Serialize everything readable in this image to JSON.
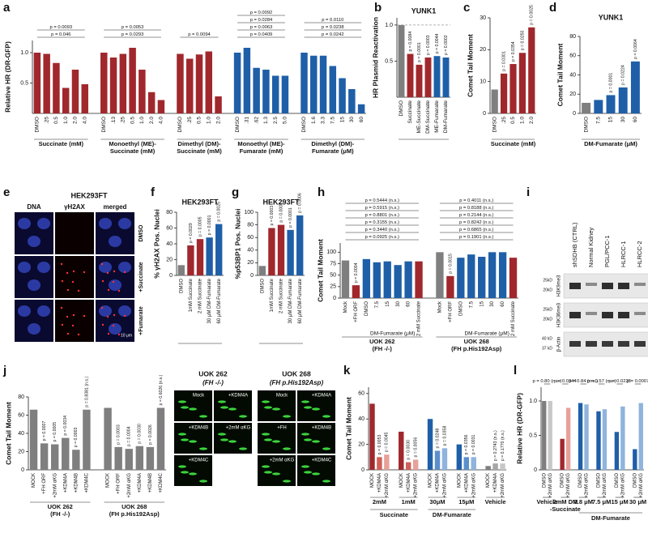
{
  "chart_data": [
    {
      "type": "bar",
      "panel": "a",
      "ylabel": "Relative HR (DR-GFP)",
      "ylim": [
        0,
        1.2
      ],
      "yticks": [
        0.5,
        {
          "value": 1,
          "label": "1.0"
        }
      ],
      "groups": [
        {
          "label": [
            "Succinate (mM)"
          ],
          "categories": [
            "DMSO",
            ".25",
            "0.5",
            "1.0",
            "2.0",
            "4.0"
          ],
          "values": [
            1.0,
            0.98,
            0.83,
            0.42,
            0.72,
            0.48
          ],
          "color": "#a0282d",
          "comparisons": [
            "p = 0.046",
            "p = 0.0093"
          ]
        },
        {
          "label": [
            "Monoethyl (ME)-",
            "Succinate (mM)"
          ],
          "categories": [
            "DMSO",
            ".13",
            ".25",
            "0.5",
            "1.0",
            "2.0",
            "4.0"
          ],
          "values": [
            1.0,
            0.92,
            0.98,
            1.08,
            0.72,
            0.35,
            0.22
          ],
          "color": "#a0282d",
          "comparisons": [
            "p = 0.0293",
            "p = 0.0053"
          ]
        },
        {
          "label": [
            "Dimethyl (DM)-",
            "Succinate (mM)"
          ],
          "categories": [
            "DMSO",
            ".25",
            "0.5",
            "1.0",
            "2.0"
          ],
          "values": [
            0.98,
            0.9,
            0.97,
            1.02,
            0.28
          ],
          "color": "#a0282d",
          "comparisons": [
            "p = 0.0094"
          ]
        },
        {
          "label": [
            "Monoethyl (ME)-",
            "Fumarate (mM)"
          ],
          "categories": [
            "DMSO",
            ".31",
            ".62",
            "1.3",
            "2.5",
            "5.0"
          ],
          "values": [
            1.0,
            1.08,
            0.75,
            0.72,
            0.62,
            0.62
          ],
          "color": "#1f5fa8",
          "comparisons": [
            "p = 0.0409",
            "p = 0.0063",
            "p = 0.0284",
            "p = 0.0092"
          ]
        },
        {
          "label": [
            "Dimethyl (DM)-",
            "Fumarate (μM)"
          ],
          "categories": [
            "DMSO",
            "1.6",
            "3.3",
            "7.5",
            "15",
            "30",
            "60"
          ],
          "values": [
            1.0,
            0.95,
            0.95,
            0.78,
            0.58,
            0.4,
            0.15
          ],
          "color": "#1f5fa8",
          "comparisons": [
            "p = 0.0242",
            "p = 0.0238",
            "p = 0.0110"
          ]
        }
      ]
    },
    {
      "type": "bar",
      "panel": "b",
      "title": "YUNK1",
      "ylabel": "HR Plasmid Reactivation",
      "ylim": [
        0,
        1.1
      ],
      "yticks": [
        0.5,
        {
          "value": 1,
          "label": "1.0"
        }
      ],
      "reference": 1,
      "groups": [
        {
          "categories": [
            "DMSO",
            "Succinate",
            "ME-Succinate",
            "DM-Succinate",
            "ME-Fumarate",
            "DM-Fumarate"
          ],
          "values": [
            1.0,
            0.6,
            0.45,
            0.55,
            0.57,
            0.55
          ],
          "colors": [
            "#7f7f7f",
            "#a0282d",
            "#a0282d",
            "#a0282d",
            "#1f5fa8",
            "#1f5fa8"
          ],
          "value_labels": [
            null,
            "p = 0.0084",
            "p = 0.0001",
            "p = 0.0003",
            "p = 0.0044",
            "p = 0.0002"
          ]
        }
      ]
    },
    {
      "type": "bar",
      "panel": "c",
      "ylabel": "Comet Tail Moment",
      "ylim": [
        0,
        30
      ],
      "yticks": [
        0,
        10,
        20,
        30
      ],
      "groups": [
        {
          "label": [
            "Succinate (mM)"
          ],
          "categories": [
            "DMSO",
            ".25",
            "0.5",
            "1.0",
            "2.0"
          ],
          "values": [
            7.5,
            12.5,
            15.5,
            19,
            27
          ],
          "colors": [
            "#7f7f7f",
            "#a0282d",
            "#a0282d",
            "#a0282d",
            "#a0282d"
          ],
          "value_labels": [
            null,
            "p = 0.0301",
            "p = 0.0354",
            "p = 0.0250",
            "p = 0.0025"
          ]
        }
      ]
    },
    {
      "type": "bar",
      "panel": "d",
      "title": "YUNK1",
      "ylabel": "Comet Tail Moment",
      "ylim": [
        0,
        80
      ],
      "yticks": [
        0,
        20,
        40,
        60,
        80
      ],
      "groups": [
        {
          "label": [
            "DM-Fumarate (μM)"
          ],
          "categories": [
            "DMSO",
            "7.5",
            "15",
            "30",
            "60"
          ],
          "values": [
            11,
            14,
            19,
            27,
            54
          ],
          "colors": [
            "#7f7f7f",
            "#1f5fa8",
            "#1f5fa8",
            "#1f5fa8",
            "#1f5fa8"
          ],
          "value_labels": [
            null,
            null,
            "p = 0.0001",
            "p = 0.0224",
            "p = 0.0064"
          ]
        }
      ]
    },
    {
      "type": "bar",
      "panel": "f",
      "title": "HEK293FT",
      "ylabel": "% γH2AX Pos. Nuclei",
      "ylim": [
        0,
        80
      ],
      "yticks": [
        0,
        20,
        40,
        60,
        80
      ],
      "groups": [
        {
          "categories": [
            "DMSO",
            "1mM Succinate",
            "2 mM Succinate",
            "30 µM DM-Fumarate",
            "60 µM DM-Fumarate"
          ],
          "values": [
            13,
            38,
            46,
            48,
            65
          ],
          "colors": [
            "#7f7f7f",
            "#a0282d",
            "#a0282d",
            "#1f5fa8",
            "#1f5fa8"
          ],
          "value_labels": [
            null,
            "p = 0.0029",
            "p = 0.0005",
            "p = 0.0001",
            "p = 0.0025"
          ]
        }
      ]
    },
    {
      "type": "bar",
      "panel": "g",
      "title": "HEK293FT",
      "ylabel": "%p53BP1 Pos. Nuclei",
      "ylim": [
        0,
        100
      ],
      "yticks": [
        0,
        20,
        40,
        60,
        80,
        100
      ],
      "groups": [
        {
          "categories": [
            "DMSO",
            "1mM Succinate",
            "2 mM Succinate",
            "30 µM DM-Fumarate",
            "60 µM DM-Fumarate"
          ],
          "values": [
            15,
            75,
            80,
            72,
            95
          ],
          "colors": [
            "#7f7f7f",
            "#a0282d",
            "#a0282d",
            "#1f5fa8",
            "#1f5fa8"
          ],
          "value_labels": [
            null,
            "p = 0.0003",
            "p = 0.0001",
            "p = 0.0001",
            "p = 0.0006"
          ]
        }
      ]
    },
    {
      "type": "bar",
      "panel": "h",
      "ylabel": "Comet Tail Moment",
      "ylim": [
        0,
        120
      ],
      "yticks": [
        0,
        25,
        50,
        75,
        100
      ],
      "groups": [
        {
          "label": [
            "UOK 262",
            "(FH -/-)"
          ],
          "note": "DM-Fumarate (μM)",
          "categories": [
            "Mock",
            "+FH ORF",
            "DMSO",
            "7.5",
            "15",
            "30",
            "60",
            "2 mM Succinate"
          ],
          "values": [
            82,
            28,
            85,
            78,
            80,
            72,
            80,
            80
          ],
          "colors": [
            "#7f7f7f",
            "#a0282d",
            "#1f5fa8",
            "#1f5fa8",
            "#1f5fa8",
            "#1f5fa8",
            "#1f5fa8",
            "#a0282d"
          ],
          "value_labels": [
            null,
            "p = 0.0004",
            null,
            null,
            null,
            null,
            null,
            null
          ],
          "comparisons": [
            "p = 0.0925 (n.s.)",
            "p = 0.3440 (n.s.)",
            "p = 0.3155 (n.s.)",
            "p = 0.8801 (n.s.)",
            "p = 0.5915 (n.s.)",
            "p = 0.5444 (n.s.)"
          ]
        },
        {
          "label": [
            "UOK 268",
            "(FH p.His192Asp)"
          ],
          "note": "DM-Fumarate (μM)",
          "categories": [
            "Mock",
            "+FH ORF",
            "DMSO",
            "7.5",
            "15",
            "30",
            "60",
            "2 mM Succinate"
          ],
          "values": [
            100,
            48,
            88,
            95,
            90,
            100,
            100,
            88
          ],
          "colors": [
            "#7f7f7f",
            "#a0282d",
            "#1f5fa8",
            "#1f5fa8",
            "#1f5fa8",
            "#1f5fa8",
            "#1f5fa8",
            "#a0282d"
          ],
          "value_labels": [
            null,
            "p = 0.0015",
            null,
            null,
            null,
            null,
            null,
            null
          ],
          "comparisons": [
            "p = 0.1901 (n.s.)",
            "p = 0.6865 (n.s.)",
            "p = 0.8242 (n.s.)",
            "p = 0.2144 (n.s.)",
            "p = 0.8188 (n.s.)",
            "p = 0.4011 (n.s.)"
          ]
        }
      ]
    },
    {
      "type": "bar",
      "panel": "j",
      "ylabel": "Comet Tail Moment",
      "ylim": [
        0,
        80
      ],
      "yticks": [
        0,
        20,
        40,
        60,
        80
      ],
      "groups": [
        {
          "label": [
            "UOK 262",
            "(FH -/-)"
          ],
          "categories": [
            "MOCK",
            "+FH ORF",
            "+2mM αKG",
            "+KDM4A",
            "+KDM4B",
            "+KDM4C"
          ],
          "values": [
            66,
            29,
            28,
            35,
            22,
            66
          ],
          "colors": [
            "#7f7f7f",
            "#7f7f7f",
            "#7f7f7f",
            "#7f7f7f",
            "#7f7f7f",
            "#7f7f7f"
          ],
          "value_labels": [
            null,
            "p = 0.0007",
            "p = 0.0005",
            "p = 0.0034",
            "p = 0.0003",
            "p = 0.8381 (n.s.)"
          ]
        },
        {
          "label": [
            "UOK 268",
            "(FH p.His192Asp)"
          ],
          "categories": [
            "MOCK",
            "+FH ORF",
            "+2mM αKG",
            "+KDM4A",
            "+KDM4B",
            "+KDM4C"
          ],
          "values": [
            68,
            25,
            23,
            26,
            25,
            68
          ],
          "colors": [
            "#7f7f7f",
            "#7f7f7f",
            "#7f7f7f",
            "#7f7f7f",
            "#7f7f7f",
            "#7f7f7f"
          ],
          "value_labels": [
            null,
            "p = 0.0003",
            "p = 0.0004",
            "p = 0.0030",
            "p = 0.0026",
            "p = 0.6026 (n.s.)"
          ]
        }
      ]
    },
    {
      "type": "bar",
      "panel": "k",
      "ylabel": "Comet Tail Moment",
      "ylim": [
        0,
        65
      ],
      "yticks": [
        0,
        20,
        40,
        60
      ],
      "groups": [
        {
          "label": [
            "2mM"
          ],
          "parent": "Succinate",
          "categories": [
            "MOCK",
            "+KDM4A",
            "+2mM αKG"
          ],
          "values": [
            52,
            10,
            12
          ],
          "colors": [
            "#a0282d",
            "#d0605a",
            "#e8a09a"
          ],
          "value_labels": [
            null,
            "p = 0.0053",
            "p = 0.0045"
          ]
        },
        {
          "label": [
            "1mM"
          ],
          "parent": "Succinate",
          "categories": [
            "MOCK",
            "+KDM4A",
            "+2mM αKG"
          ],
          "values": [
            30,
            6,
            8
          ],
          "colors": [
            "#a0282d",
            "#d0605a",
            "#e8a09a"
          ],
          "value_labels": [
            null,
            "p = 0.0030",
            "p = 0.0056"
          ]
        },
        {
          "label": [
            "30μM"
          ],
          "parent": "DM-Fumarate",
          "categories": [
            "MOCK",
            "+KDM4A",
            "+2mM αKG"
          ],
          "values": [
            40,
            15,
            17
          ],
          "colors": [
            "#1f5fa8",
            "#5b8fcc",
            "#8fb4dd"
          ],
          "value_labels": [
            null,
            "p = 0.0248",
            "p = 0.0358"
          ]
        },
        {
          "label": [
            "15μM"
          ],
          "parent": "DM-Fumarate",
          "categories": [
            "MOCK",
            "+KDM4A",
            "+2mM αKG"
          ],
          "values": [
            20,
            10,
            10
          ],
          "colors": [
            "#1f5fa8",
            "#5b8fcc",
            "#8fb4dd"
          ],
          "value_labels": [
            null,
            "p = 0.0356",
            "p = 0.0031"
          ]
        },
        {
          "label": [
            "Vehicle"
          ],
          "categories": [
            "MOCK",
            "+KDM4A",
            "+2mM αKG"
          ],
          "values": [
            3,
            5,
            5
          ],
          "colors": [
            "#7f7f7f",
            "#a6a6a6",
            "#c8c8c8"
          ],
          "value_labels": [
            null,
            "p = 0.2743 (n.s.)",
            "p = 0.1770 (n.s.)"
          ]
        }
      ]
    },
    {
      "type": "bar",
      "panel": "l",
      "ylabel": "Relative HR (DR-GFP)",
      "ylim": [
        0,
        1.2
      ],
      "yticks": [
        0,
        0.5,
        {
          "value": 1,
          "label": "1.0"
        }
      ],
      "groups": [
        {
          "label": [
            "Vehicle"
          ],
          "categories": [
            "DMSO",
            "+2mM αKG"
          ],
          "values": [
            1.0,
            1.0
          ],
          "colors": [
            "#7f7f7f",
            "#c8c8c8"
          ],
          "comparisons": [
            "p = 0.80 (n.s.)"
          ]
        },
        {
          "label": [
            "2mM DM",
            "-Succinate"
          ],
          "categories": [
            "DMSO",
            "+2mM αKG"
          ],
          "values": [
            0.45,
            0.9
          ],
          "colors": [
            "#a0282d",
            "#e8a09a"
          ],
          "comparisons": [
            "p = 0.0344"
          ]
        },
        {
          "label": [
            "3.8 μM"
          ],
          "parent": "DM-Fumarate",
          "categories": [
            "DMSO",
            "+2mM αKG"
          ],
          "values": [
            0.97,
            0.95
          ],
          "colors": [
            "#1f5fa8",
            "#8fb4dd"
          ],
          "comparisons": [
            "p = 0.84 (n.s.)"
          ]
        },
        {
          "label": [
            "7.5 μM"
          ],
          "parent": "DM-Fumarate",
          "categories": [
            "DMSO",
            "+2mM αKG"
          ],
          "values": [
            0.85,
            0.88
          ],
          "colors": [
            "#1f5fa8",
            "#8fb4dd"
          ],
          "comparisons": [
            "p = 0.57 (n.s.)"
          ]
        },
        {
          "label": [
            "15 μM"
          ],
          "parent": "DM-Fumarate",
          "categories": [
            "DMSO",
            "+2mM αKG"
          ],
          "values": [
            0.55,
            0.92
          ],
          "colors": [
            "#1f5fa8",
            "#8fb4dd"
          ],
          "comparisons": [
            "p = 0.0228"
          ]
        },
        {
          "label": [
            "30 μM"
          ],
          "parent": "DM-Fumarate",
          "categories": [
            "DMSO",
            "+2mM αKG"
          ],
          "values": [
            0.3,
            0.97
          ],
          "colors": [
            "#1f5fa8",
            "#8fb4dd"
          ],
          "comparisons": [
            "p = 0.0007"
          ]
        }
      ]
    }
  ],
  "panel_e": {
    "panel": "e",
    "title": "HEK293FT",
    "columns": [
      "DNA",
      "γH2AX",
      "merged"
    ],
    "rows": [
      "DMSO",
      "+Succinate",
      "+Fumarate"
    ],
    "scale_bar": "10 μm"
  },
  "panel_i": {
    "panel": "i",
    "lanes": [
      "shSDHB (CTRL)",
      "Normal Kidney",
      "PGL/PCC-1",
      "HLRCC-1",
      "HLRCC-2"
    ],
    "rows": [
      {
        "name": "H3K9me3",
        "markers": [
          "25kD",
          "20kD"
        ]
      },
      {
        "name": "H3K36me3",
        "markers": [
          "25kD",
          "20kD"
        ]
      },
      {
        "name": "β-Actin",
        "markers": [
          "40 kD",
          "37 kD"
        ]
      }
    ]
  },
  "comet_images": [
    {
      "title": "UOK 262",
      "subtitle": "(FH -/-)",
      "cells": [
        "Mock",
        "+KDM4A",
        "+KDM4B",
        "+2mM αKG",
        "+KDM4C"
      ]
    },
    {
      "title": "UOK 268",
      "subtitle": "(FH p.His192Asp)",
      "cells": [
        "Mock",
        "+KDM4A",
        "+FH",
        "+KDM4B",
        "+2mM αKG",
        "+KDM4C"
      ]
    }
  ]
}
